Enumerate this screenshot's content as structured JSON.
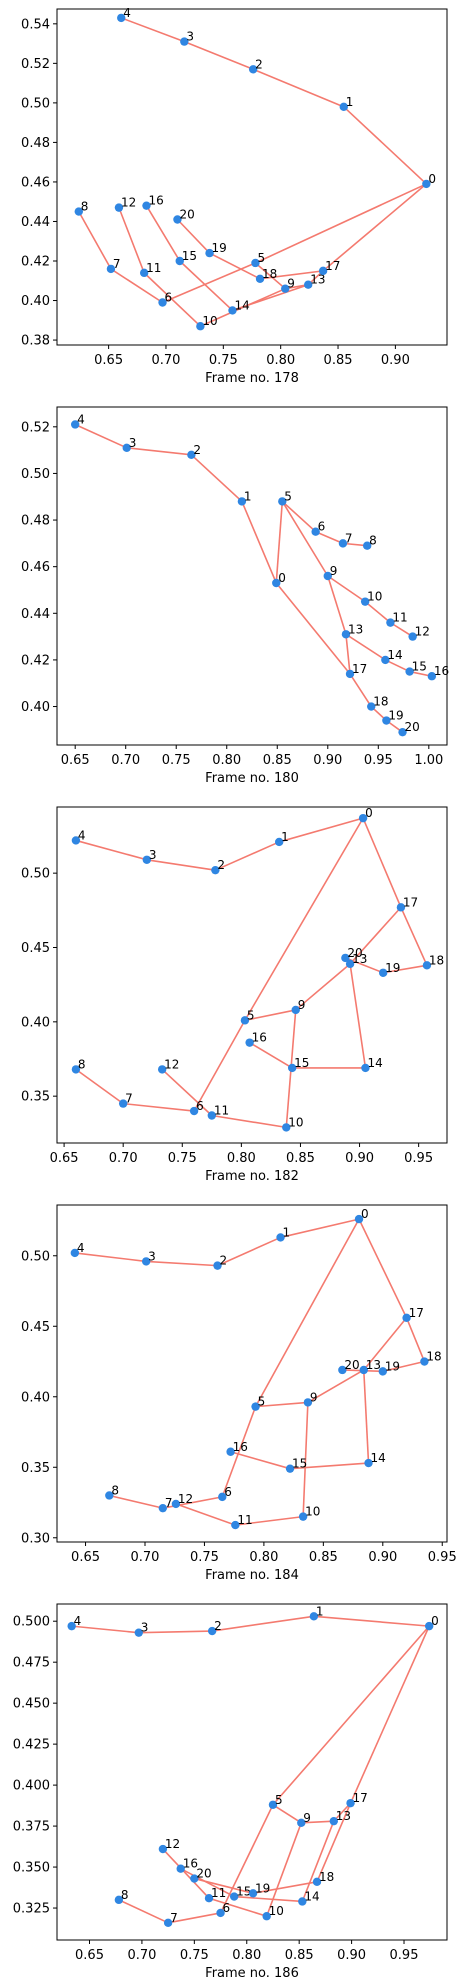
{
  "figure": {
    "title": "",
    "point_color": "#2f86e2",
    "line_color": "#f47a6f"
  },
  "chart_data": [
    {
      "type": "scatter",
      "xlabel": "Frame no. 178",
      "ylabel": "",
      "xlim": [
        0.605,
        0.945
      ],
      "ylim": [
        0.3775,
        0.5475
      ],
      "xticks": [
        0.65,
        0.7,
        0.75,
        0.8,
        0.85,
        0.9
      ],
      "xtick_labels": [
        "0.65",
        "0.70",
        "0.75",
        "0.80",
        "0.85",
        "0.90"
      ],
      "yticks": [
        0.38,
        0.4,
        0.42,
        0.44,
        0.46,
        0.48,
        0.5,
        0.52,
        0.54
      ],
      "ytick_labels": [
        "0.38",
        "0.40",
        "0.42",
        "0.44",
        "0.46",
        "0.48",
        "0.50",
        "0.52",
        "0.54"
      ],
      "points": [
        {
          "label": "0",
          "x": 0.927,
          "y": 0.459
        },
        {
          "label": "1",
          "x": 0.855,
          "y": 0.498
        },
        {
          "label": "2",
          "x": 0.776,
          "y": 0.517
        },
        {
          "label": "3",
          "x": 0.716,
          "y": 0.531
        },
        {
          "label": "4",
          "x": 0.661,
          "y": 0.543
        },
        {
          "label": "5",
          "x": 0.778,
          "y": 0.419
        },
        {
          "label": "6",
          "x": 0.697,
          "y": 0.399
        },
        {
          "label": "7",
          "x": 0.652,
          "y": 0.416
        },
        {
          "label": "8",
          "x": 0.624,
          "y": 0.445
        },
        {
          "label": "9",
          "x": 0.804,
          "y": 0.406
        },
        {
          "label": "10",
          "x": 0.73,
          "y": 0.387
        },
        {
          "label": "11",
          "x": 0.681,
          "y": 0.414
        },
        {
          "label": "12",
          "x": 0.659,
          "y": 0.447
        },
        {
          "label": "13",
          "x": 0.824,
          "y": 0.408
        },
        {
          "label": "14",
          "x": 0.758,
          "y": 0.395
        },
        {
          "label": "15",
          "x": 0.712,
          "y": 0.42
        },
        {
          "label": "16",
          "x": 0.683,
          "y": 0.448
        },
        {
          "label": "17",
          "x": 0.837,
          "y": 0.415
        },
        {
          "label": "18",
          "x": 0.782,
          "y": 0.411
        },
        {
          "label": "19",
          "x": 0.738,
          "y": 0.424
        },
        {
          "label": "20",
          "x": 0.71,
          "y": 0.441
        }
      ],
      "edges": [
        [
          0,
          1
        ],
        [
          1,
          2
        ],
        [
          2,
          3
        ],
        [
          3,
          4
        ],
        [
          0,
          5
        ],
        [
          5,
          6
        ],
        [
          6,
          7
        ],
        [
          7,
          8
        ],
        [
          5,
          9
        ],
        [
          9,
          10
        ],
        [
          10,
          11
        ],
        [
          11,
          12
        ],
        [
          9,
          13
        ],
        [
          13,
          14
        ],
        [
          14,
          15
        ],
        [
          15,
          16
        ],
        [
          13,
          17
        ],
        [
          17,
          18
        ],
        [
          18,
          19
        ],
        [
          19,
          20
        ],
        [
          0,
          17
        ]
      ]
    },
    {
      "type": "scatter",
      "xlabel": "Frame no. 180",
      "ylabel": "",
      "xlim": [
        0.632,
        1.018
      ],
      "ylim": [
        0.3835,
        0.5285
      ],
      "xticks": [
        0.65,
        0.7,
        0.75,
        0.8,
        0.85,
        0.9,
        0.95,
        1.0
      ],
      "xtick_labels": [
        "0.65",
        "0.70",
        "0.75",
        "0.80",
        "0.85",
        "0.90",
        "0.95",
        "1.00"
      ],
      "yticks": [
        0.4,
        0.42,
        0.44,
        0.46,
        0.48,
        0.5,
        0.52
      ],
      "ytick_labels": [
        "0.40",
        "0.42",
        "0.44",
        "0.46",
        "0.48",
        "0.50",
        "0.52"
      ],
      "points": [
        {
          "label": "0",
          "x": 0.849,
          "y": 0.453
        },
        {
          "label": "1",
          "x": 0.815,
          "y": 0.488
        },
        {
          "label": "2",
          "x": 0.765,
          "y": 0.508
        },
        {
          "label": "3",
          "x": 0.701,
          "y": 0.511
        },
        {
          "label": "4",
          "x": 0.65,
          "y": 0.521
        },
        {
          "label": "5",
          "x": 0.855,
          "y": 0.488
        },
        {
          "label": "6",
          "x": 0.888,
          "y": 0.475
        },
        {
          "label": "7",
          "x": 0.915,
          "y": 0.47
        },
        {
          "label": "8",
          "x": 0.939,
          "y": 0.469
        },
        {
          "label": "9",
          "x": 0.9,
          "y": 0.456
        },
        {
          "label": "10",
          "x": 0.937,
          "y": 0.445
        },
        {
          "label": "11",
          "x": 0.962,
          "y": 0.436
        },
        {
          "label": "12",
          "x": 0.984,
          "y": 0.43
        },
        {
          "label": "13",
          "x": 0.918,
          "y": 0.431
        },
        {
          "label": "14",
          "x": 0.957,
          "y": 0.42
        },
        {
          "label": "15",
          "x": 0.981,
          "y": 0.415
        },
        {
          "label": "16",
          "x": 1.003,
          "y": 0.413
        },
        {
          "label": "17",
          "x": 0.922,
          "y": 0.414
        },
        {
          "label": "18",
          "x": 0.943,
          "y": 0.4
        },
        {
          "label": "19",
          "x": 0.958,
          "y": 0.394
        },
        {
          "label": "20",
          "x": 0.974,
          "y": 0.389
        }
      ],
      "edges": [
        [
          0,
          1
        ],
        [
          1,
          2
        ],
        [
          2,
          3
        ],
        [
          3,
          4
        ],
        [
          0,
          5
        ],
        [
          5,
          6
        ],
        [
          6,
          7
        ],
        [
          7,
          8
        ],
        [
          5,
          9
        ],
        [
          9,
          10
        ],
        [
          10,
          11
        ],
        [
          11,
          12
        ],
        [
          9,
          13
        ],
        [
          13,
          14
        ],
        [
          14,
          15
        ],
        [
          15,
          16
        ],
        [
          13,
          17
        ],
        [
          17,
          18
        ],
        [
          18,
          19
        ],
        [
          19,
          20
        ],
        [
          0,
          17
        ]
      ]
    },
    {
      "type": "scatter",
      "xlabel": "Frame no. 182",
      "ylabel": "",
      "xlim": [
        0.644,
        0.974
      ],
      "ylim": [
        0.3185,
        0.5445
      ],
      "xticks": [
        0.65,
        0.7,
        0.75,
        0.8,
        0.85,
        0.9,
        0.95
      ],
      "xtick_labels": [
        "0.65",
        "0.70",
        "0.75",
        "0.80",
        "0.85",
        "0.90",
        "0.95"
      ],
      "yticks": [
        0.35,
        0.4,
        0.45,
        0.5
      ],
      "ytick_labels": [
        "0.35",
        "0.40",
        "0.45",
        "0.50"
      ],
      "points": [
        {
          "label": "0",
          "x": 0.903,
          "y": 0.537
        },
        {
          "label": "1",
          "x": 0.832,
          "y": 0.521
        },
        {
          "label": "2",
          "x": 0.778,
          "y": 0.502
        },
        {
          "label": "3",
          "x": 0.72,
          "y": 0.509
        },
        {
          "label": "4",
          "x": 0.66,
          "y": 0.522
        },
        {
          "label": "5",
          "x": 0.803,
          "y": 0.401
        },
        {
          "label": "6",
          "x": 0.76,
          "y": 0.34
        },
        {
          "label": "7",
          "x": 0.7,
          "y": 0.345
        },
        {
          "label": "8",
          "x": 0.66,
          "y": 0.368
        },
        {
          "label": "9",
          "x": 0.846,
          "y": 0.408
        },
        {
          "label": "10",
          "x": 0.838,
          "y": 0.329
        },
        {
          "label": "11",
          "x": 0.775,
          "y": 0.337
        },
        {
          "label": "12",
          "x": 0.733,
          "y": 0.368
        },
        {
          "label": "13",
          "x": 0.892,
          "y": 0.439
        },
        {
          "label": "14",
          "x": 0.905,
          "y": 0.369
        },
        {
          "label": "15",
          "x": 0.843,
          "y": 0.369
        },
        {
          "label": "16",
          "x": 0.807,
          "y": 0.386
        },
        {
          "label": "17",
          "x": 0.935,
          "y": 0.477
        },
        {
          "label": "18",
          "x": 0.957,
          "y": 0.438
        },
        {
          "label": "19",
          "x": 0.92,
          "y": 0.433
        },
        {
          "label": "20",
          "x": 0.888,
          "y": 0.443
        }
      ],
      "edges": [
        [
          0,
          1
        ],
        [
          1,
          2
        ],
        [
          2,
          3
        ],
        [
          3,
          4
        ],
        [
          0,
          5
        ],
        [
          5,
          6
        ],
        [
          6,
          7
        ],
        [
          7,
          8
        ],
        [
          5,
          9
        ],
        [
          9,
          10
        ],
        [
          10,
          11
        ],
        [
          11,
          12
        ],
        [
          9,
          13
        ],
        [
          13,
          14
        ],
        [
          14,
          15
        ],
        [
          15,
          16
        ],
        [
          13,
          17
        ],
        [
          17,
          18
        ],
        [
          18,
          19
        ],
        [
          19,
          20
        ],
        [
          0,
          17
        ]
      ]
    },
    {
      "type": "scatter",
      "xlabel": "Frame no. 184",
      "ylabel": "",
      "xlim": [
        0.626,
        0.954
      ],
      "ylim": [
        0.297,
        0.536
      ],
      "xticks": [
        0.65,
        0.7,
        0.75,
        0.8,
        0.85,
        0.9,
        0.95
      ],
      "xtick_labels": [
        "0.65",
        "0.70",
        "0.75",
        "0.80",
        "0.85",
        "0.90",
        "0.95"
      ],
      "yticks": [
        0.3,
        0.35,
        0.4,
        0.45,
        0.5
      ],
      "ytick_labels": [
        "0.30",
        "0.35",
        "0.40",
        "0.45",
        "0.50"
      ],
      "points": [
        {
          "label": "0",
          "x": 0.88,
          "y": 0.526
        },
        {
          "label": "1",
          "x": 0.814,
          "y": 0.513
        },
        {
          "label": "2",
          "x": 0.761,
          "y": 0.493
        },
        {
          "label": "3",
          "x": 0.701,
          "y": 0.496
        },
        {
          "label": "4",
          "x": 0.641,
          "y": 0.502
        },
        {
          "label": "5",
          "x": 0.793,
          "y": 0.393
        },
        {
          "label": "6",
          "x": 0.765,
          "y": 0.329
        },
        {
          "label": "7",
          "x": 0.715,
          "y": 0.321
        },
        {
          "label": "8",
          "x": 0.67,
          "y": 0.33
        },
        {
          "label": "9",
          "x": 0.837,
          "y": 0.396
        },
        {
          "label": "10",
          "x": 0.833,
          "y": 0.315
        },
        {
          "label": "11",
          "x": 0.776,
          "y": 0.309
        },
        {
          "label": "12",
          "x": 0.726,
          "y": 0.324
        },
        {
          "label": "13",
          "x": 0.884,
          "y": 0.419
        },
        {
          "label": "14",
          "x": 0.888,
          "y": 0.353
        },
        {
          "label": "15",
          "x": 0.822,
          "y": 0.349
        },
        {
          "label": "16",
          "x": 0.772,
          "y": 0.361
        },
        {
          "label": "17",
          "x": 0.92,
          "y": 0.456
        },
        {
          "label": "18",
          "x": 0.935,
          "y": 0.425
        },
        {
          "label": "19",
          "x": 0.9,
          "y": 0.418
        },
        {
          "label": "20",
          "x": 0.866,
          "y": 0.419
        }
      ],
      "edges": [
        [
          0,
          1
        ],
        [
          1,
          2
        ],
        [
          2,
          3
        ],
        [
          3,
          4
        ],
        [
          0,
          5
        ],
        [
          5,
          6
        ],
        [
          6,
          7
        ],
        [
          7,
          8
        ],
        [
          5,
          9
        ],
        [
          9,
          10
        ],
        [
          10,
          11
        ],
        [
          11,
          12
        ],
        [
          9,
          13
        ],
        [
          13,
          14
        ],
        [
          14,
          15
        ],
        [
          15,
          16
        ],
        [
          13,
          17
        ],
        [
          17,
          18
        ],
        [
          18,
          19
        ],
        [
          19,
          20
        ],
        [
          0,
          17
        ]
      ]
    },
    {
      "type": "scatter",
      "xlabel": "Frame no. 186",
      "ylabel": "",
      "xlim": [
        0.619,
        0.991
      ],
      "ylim": [
        0.3055,
        0.5105
      ],
      "xticks": [
        0.65,
        0.7,
        0.75,
        0.8,
        0.85,
        0.9,
        0.95
      ],
      "xtick_labels": [
        "0.65",
        "0.70",
        "0.75",
        "0.80",
        "0.85",
        "0.90",
        "0.95"
      ],
      "yticks": [
        0.325,
        0.35,
        0.375,
        0.4,
        0.425,
        0.45,
        0.475,
        0.5
      ],
      "ytick_labels": [
        "0.325",
        "0.350",
        "0.375",
        "0.400",
        "0.425",
        "0.450",
        "0.475",
        "0.500"
      ],
      "points": [
        {
          "label": "0",
          "x": 0.974,
          "y": 0.497
        },
        {
          "label": "1",
          "x": 0.864,
          "y": 0.503
        },
        {
          "label": "2",
          "x": 0.767,
          "y": 0.494
        },
        {
          "label": "3",
          "x": 0.697,
          "y": 0.493
        },
        {
          "label": "4",
          "x": 0.633,
          "y": 0.497
        },
        {
          "label": "5",
          "x": 0.825,
          "y": 0.388
        },
        {
          "label": "6",
          "x": 0.775,
          "y": 0.322
        },
        {
          "label": "7",
          "x": 0.725,
          "y": 0.316
        },
        {
          "label": "8",
          "x": 0.678,
          "y": 0.33
        },
        {
          "label": "9",
          "x": 0.852,
          "y": 0.377
        },
        {
          "label": "10",
          "x": 0.819,
          "y": 0.32
        },
        {
          "label": "11",
          "x": 0.764,
          "y": 0.331
        },
        {
          "label": "12",
          "x": 0.72,
          "y": 0.361
        },
        {
          "label": "13",
          "x": 0.883,
          "y": 0.378
        },
        {
          "label": "14",
          "x": 0.853,
          "y": 0.329
        },
        {
          "label": "15",
          "x": 0.788,
          "y": 0.332
        },
        {
          "label": "16",
          "x": 0.737,
          "y": 0.349
        },
        {
          "label": "17",
          "x": 0.899,
          "y": 0.389
        },
        {
          "label": "18",
          "x": 0.867,
          "y": 0.341
        },
        {
          "label": "19",
          "x": 0.806,
          "y": 0.334
        },
        {
          "label": "20",
          "x": 0.75,
          "y": 0.343
        }
      ],
      "edges": [
        [
          0,
          1
        ],
        [
          1,
          2
        ],
        [
          2,
          3
        ],
        [
          3,
          4
        ],
        [
          0,
          5
        ],
        [
          5,
          6
        ],
        [
          6,
          7
        ],
        [
          7,
          8
        ],
        [
          5,
          9
        ],
        [
          9,
          10
        ],
        [
          10,
          11
        ],
        [
          11,
          12
        ],
        [
          9,
          13
        ],
        [
          13,
          14
        ],
        [
          14,
          15
        ],
        [
          15,
          16
        ],
        [
          13,
          17
        ],
        [
          17,
          18
        ],
        [
          18,
          19
        ],
        [
          19,
          20
        ],
        [
          0,
          17
        ]
      ]
    }
  ]
}
